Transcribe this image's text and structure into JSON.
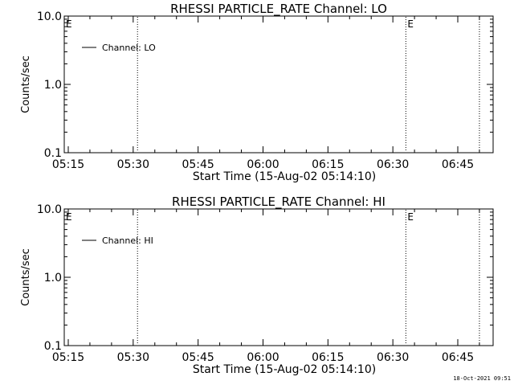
{
  "footer": {
    "timestamp": "18-Oct-2021 09:51"
  },
  "chart_data": [
    {
      "type": "line",
      "title": "RHESSI PARTICLE_RATE Channel: LO",
      "xlabel": "Start Time (15-Aug-02 05:14:10)",
      "ylabel": "Counts/sec",
      "y_scale": "log",
      "ylim": [
        0.1,
        10.0
      ],
      "y_ticks": [
        "10.0",
        "1.0",
        "0.1"
      ],
      "x_ticks": [
        "05:15",
        "05:30",
        "05:45",
        "06:00",
        "06:15",
        "06:30",
        "06:45"
      ],
      "grid": false,
      "legend": {
        "placement": "top-left",
        "entries": [
          "Channel: LO"
        ]
      },
      "series": [
        {
          "name": "Channel: LO",
          "values": []
        }
      ],
      "markers": [
        {
          "time": "05:31",
          "label": ""
        },
        {
          "time": "06:33",
          "label": "E"
        },
        {
          "time": "06:50",
          "label": ""
        }
      ],
      "corner_label": "E"
    },
    {
      "type": "line",
      "title": "RHESSI PARTICLE_RATE Channel: HI",
      "xlabel": "Start Time (15-Aug-02 05:14:10)",
      "ylabel": "Counts/sec",
      "y_scale": "log",
      "ylim": [
        0.1,
        10.0
      ],
      "y_ticks": [
        "10.0",
        "1.0",
        "0.1"
      ],
      "x_ticks": [
        "05:15",
        "05:30",
        "05:45",
        "06:00",
        "06:15",
        "06:30",
        "06:45"
      ],
      "grid": false,
      "legend": {
        "placement": "top-left",
        "entries": [
          "Channel: HI"
        ]
      },
      "series": [
        {
          "name": "Channel: HI",
          "values": []
        }
      ],
      "markers": [
        {
          "time": "05:31",
          "label": ""
        },
        {
          "time": "06:33",
          "label": "E"
        },
        {
          "time": "06:50",
          "label": ""
        }
      ],
      "corner_label": "E"
    }
  ]
}
